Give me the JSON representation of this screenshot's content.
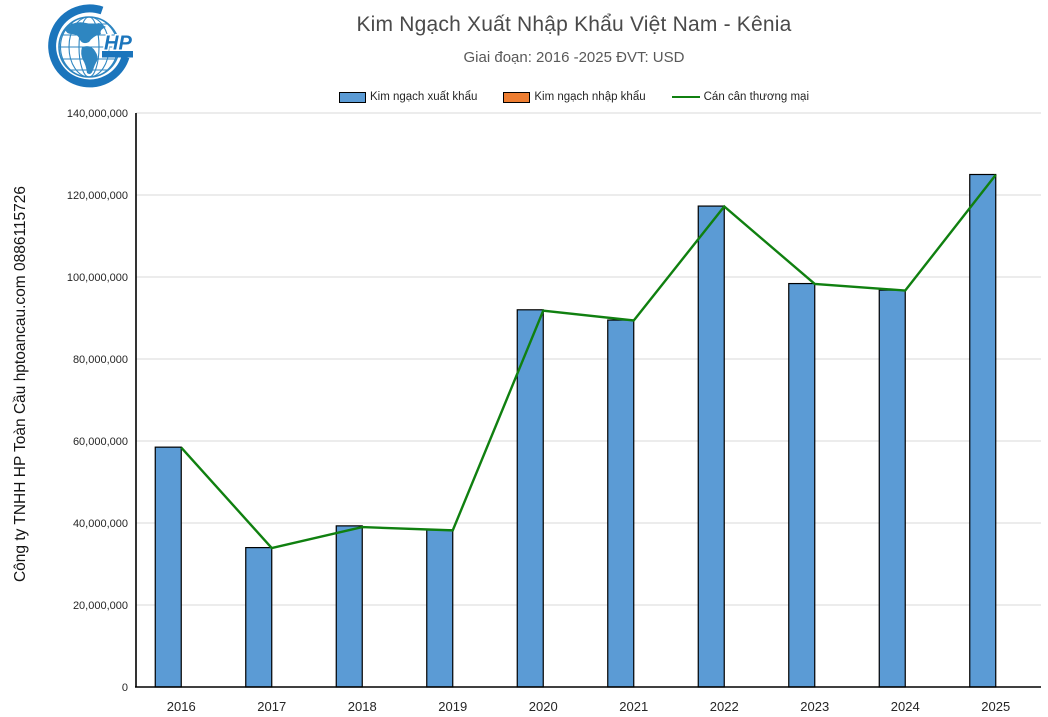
{
  "page": {
    "background": "#ffffff"
  },
  "branding": {
    "logo": {
      "letters": "HP",
      "dark_blue": "#1B75BC",
      "light_blue": "#2E86C1"
    },
    "side_text": "Công ty TNHH HP Toàn Cầu hptoancau.com 0886115726"
  },
  "header": {
    "title": "Kim Ngạch Xuất Nhập Khẩu Việt Nam - Kênia",
    "subtitle": "Giai đoạn: 2016 -2025  ĐVT: USD"
  },
  "chart_data": {
    "type": "combo",
    "title": "Kim Ngạch Xuất Nhập Khẩu Việt Nam - Kênia",
    "subtitle": "Giai đoạn: 2016 -2025  ĐVT: USD",
    "categories": [
      "2016",
      "2017",
      "2018",
      "2019",
      "2020",
      "2021",
      "2022",
      "2023",
      "2024",
      "2025"
    ],
    "series": [
      {
        "name": "Kim ngạch xuất khẩu",
        "kind": "bar",
        "color": "#5B9BD5",
        "values": [
          58500000,
          34000000,
          39300000,
          38300000,
          92000000,
          89500000,
          117300000,
          98400000,
          96800000,
          125000000
        ]
      },
      {
        "name": "Kim ngạch nhập khẩu",
        "kind": "bar",
        "color": "#ED7D31",
        "values": [
          100000,
          100000,
          300000,
          100000,
          200000,
          100000,
          100000,
          100000,
          100000,
          100000
        ]
      },
      {
        "name": "Cán cân thương mại",
        "kind": "line",
        "color": "#108010",
        "values": [
          58400000,
          33900000,
          39000000,
          38200000,
          91800000,
          89400000,
          117200000,
          98300000,
          96700000,
          124900000
        ]
      }
    ],
    "xlabel": "",
    "ylabel": "",
    "ylim": [
      0,
      140000000
    ],
    "ytick_step": 20000000,
    "ytick_labels": [
      "0",
      "20,000,000",
      "40,000,000",
      "60,000,000",
      "80,000,000",
      "100,000,000",
      "120,000,000",
      "140,000,000"
    ],
    "grid": true,
    "gridline_color": "#D9D9D9",
    "axis_color": "#000000",
    "tick_label_color": "#262626",
    "legend_position": "top"
  }
}
